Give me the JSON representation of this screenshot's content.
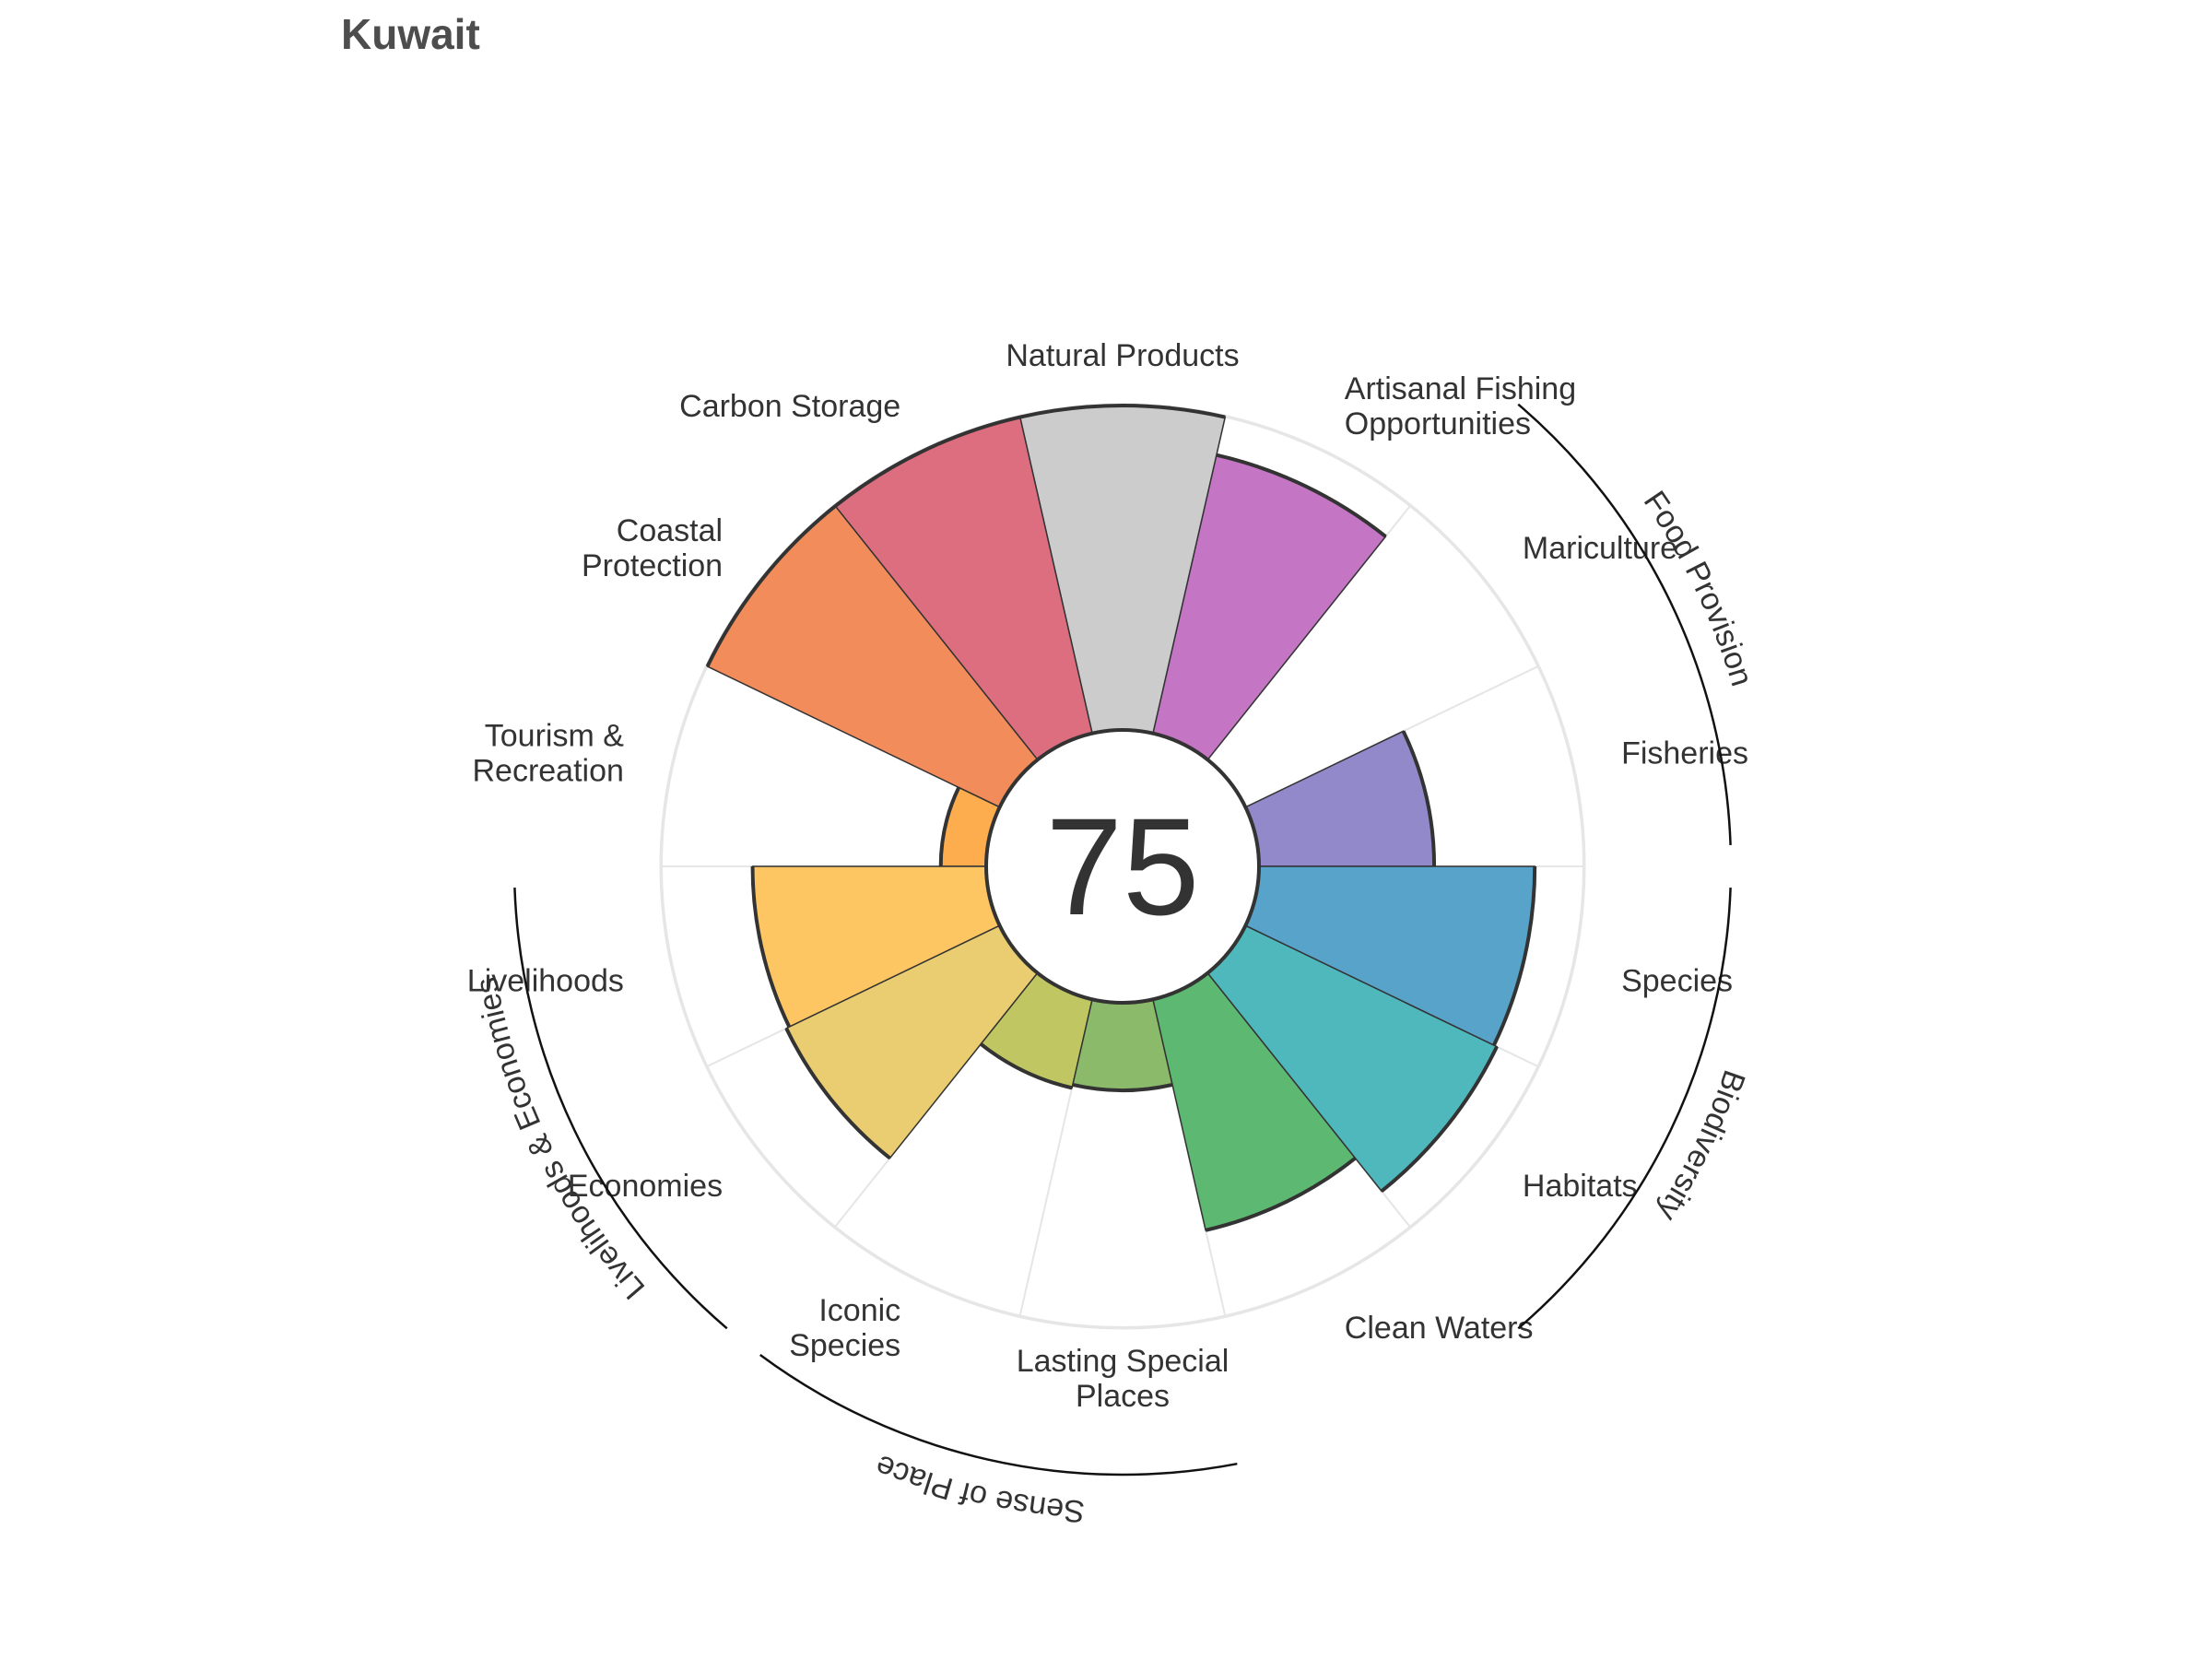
{
  "title": "Kuwait",
  "chart_data": {
    "type": "flower",
    "title": "Kuwait",
    "overall_score": "75",
    "max_score": 100,
    "petals": [
      {
        "key": "fisheries",
        "label": [
          "Fisheries"
        ],
        "score": 54,
        "weight": 1,
        "color": "#9189c9"
      },
      {
        "key": "mariculture",
        "label": [
          "Mariculture"
        ],
        "score": null,
        "weight": 1,
        "color": "#9189c9"
      },
      {
        "key": "artisanal",
        "label": [
          "Artisanal Fishing",
          "Opportunities"
        ],
        "score": 88,
        "weight": 1,
        "color": "#c476c4"
      },
      {
        "key": "natural_products",
        "label": [
          "Natural Products"
        ],
        "score": 100,
        "weight": 1,
        "color": "#cccccc"
      },
      {
        "key": "carbon_storage",
        "label": [
          "Carbon Storage"
        ],
        "score": 100,
        "weight": 1,
        "color": "#dc6e7f"
      },
      {
        "key": "coastal_protection",
        "label": [
          "Coastal",
          "Protection"
        ],
        "score": 100,
        "weight": 1,
        "color": "#f28c5a"
      },
      {
        "key": "tourism",
        "label": [
          "Tourism &",
          "Recreation"
        ],
        "score": 14,
        "weight": 1,
        "color": "#fdad4d"
      },
      {
        "key": "livelihoods",
        "label": [
          "Livelihoods"
        ],
        "score": 72,
        "weight": 1,
        "color": "#fdc663"
      },
      {
        "key": "economies",
        "label": [
          "Economies"
        ],
        "score": 73,
        "weight": 1,
        "color": "#e9cd70"
      },
      {
        "key": "iconic_species",
        "label": [
          "Iconic",
          "Species"
        ],
        "score": 28,
        "weight": 1,
        "color": "#c0c762"
      },
      {
        "key": "lasting_special_places",
        "label": [
          "Lasting Special",
          "Places"
        ],
        "score": 27,
        "weight": 1,
        "color": "#8cba6b"
      },
      {
        "key": "clean_waters",
        "label": [
          "Clean Waters"
        ],
        "score": 73,
        "weight": 1,
        "color": "#5db871"
      },
      {
        "key": "habitats",
        "label": [
          "Habitats"
        ],
        "score": 86,
        "weight": 1,
        "color": "#4eb8bc"
      },
      {
        "key": "species",
        "label": [
          "Species"
        ],
        "score": 85,
        "weight": 1,
        "color": "#58a3c9"
      }
    ],
    "goal_groups": [
      {
        "label": "Food Provision",
        "petals": [
          "fisheries",
          "mariculture"
        ]
      },
      {
        "label": "Biodiversity",
        "petals": [
          "habitats",
          "species"
        ]
      },
      {
        "label": "Sense of Place",
        "petals": [
          "iconic_species",
          "lasting_special_places"
        ]
      },
      {
        "label": "Livelihoods & Economies",
        "petals": [
          "livelihoods",
          "economies"
        ]
      }
    ]
  }
}
